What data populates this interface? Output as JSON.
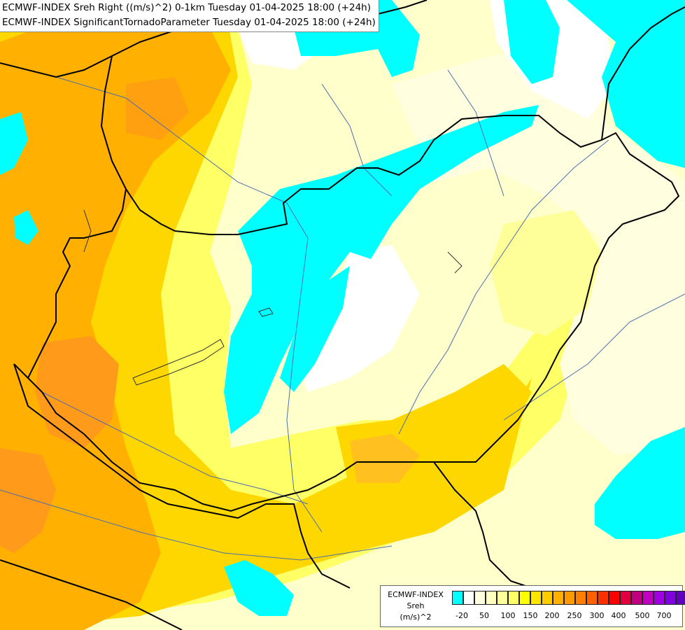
{
  "title": {
    "line1": "ECMWF-INDEX Sreh Right ((m/s)^2) 0-1km Tuesday 01-04-2025 18:00 (+24h)",
    "line2": "ECMWF-INDEX SignificantTornadoParameter Tuesday 01-04-2025 18:00 (+24h)"
  },
  "legend": {
    "model": "ECMWF-INDEX",
    "param": "Sreh",
    "unit": "(m/s)^2",
    "ticks": [
      "-20",
      "50",
      "100",
      "150",
      "200",
      "250",
      "300",
      "400",
      "500",
      "700"
    ],
    "colors": [
      "#00ffff",
      "#ffffff",
      "#ffffe0",
      "#ffffc0",
      "#ffff99",
      "#ffff66",
      "#ffff00",
      "#ffe600",
      "#ffcc00",
      "#ffb000",
      "#ff9900",
      "#ff8000",
      "#ff6000",
      "#ff3000",
      "#ff0000",
      "#e00040",
      "#c00080",
      "#c000c0",
      "#a000e0",
      "#8000e0",
      "#6000c0",
      "#3000a0",
      "#100080"
    ]
  },
  "map_colors": {
    "cyan": "#00ffff",
    "white": "#ffffff",
    "pale": "#ffffcc",
    "light_yellow": "#ffff99",
    "yellow": "#ffff00",
    "gold": "#ffd700",
    "orange": "#ffb000",
    "dark_orange": "#ff8c00",
    "border_line": "#000000",
    "river_line": "#4a6fae"
  }
}
